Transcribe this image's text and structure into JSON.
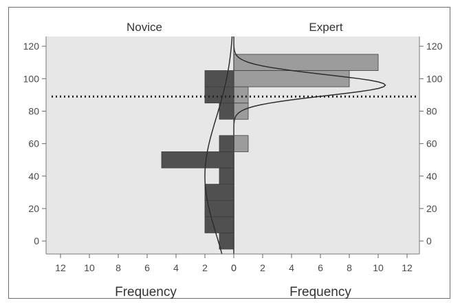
{
  "chart_data": {
    "type": "bar",
    "orientation": "horizontal back-to-back histogram with fitted normal curves",
    "panels": {
      "left_title": "Novice",
      "right_title": "Expert"
    },
    "xlabel_left": "Frequency",
    "xlabel_right": "Frequency",
    "x_ticks_left": [
      12,
      10,
      8,
      6,
      4,
      2,
      0
    ],
    "x_ticks_right": [
      0,
      2,
      4,
      6,
      8,
      10,
      12
    ],
    "xlim": [
      0,
      12
    ],
    "y_ticks": [
      0,
      20,
      40,
      60,
      80,
      100,
      120
    ],
    "ylim": [
      -8,
      126
    ],
    "bin_width": 10,
    "reference_line_y": 89,
    "series": [
      {
        "name": "Novice",
        "side": "left",
        "color": "#505050",
        "bins": [
          {
            "y0": -5,
            "y1": 5,
            "frequency": 1
          },
          {
            "y0": 5,
            "y1": 15,
            "frequency": 2
          },
          {
            "y0": 15,
            "y1": 25,
            "frequency": 2
          },
          {
            "y0": 25,
            "y1": 35,
            "frequency": 2
          },
          {
            "y0": 35,
            "y1": 45,
            "frequency": 1
          },
          {
            "y0": 45,
            "y1": 55,
            "frequency": 5
          },
          {
            "y0": 55,
            "y1": 65,
            "frequency": 1
          },
          {
            "y0": 75,
            "y1": 85,
            "frequency": 1
          },
          {
            "y0": 85,
            "y1": 95,
            "frequency": 2
          },
          {
            "y0": 95,
            "y1": 105,
            "frequency": 2
          }
        ],
        "normal_fit": {
          "mean": 40,
          "sd": 36,
          "peak_frequency": 2
        }
      },
      {
        "name": "Expert",
        "side": "right",
        "color": "#9c9c9c",
        "bins": [
          {
            "y0": 75,
            "y1": 85,
            "frequency": 1
          },
          {
            "y0": 85,
            "y1": 95,
            "frequency": 1
          },
          {
            "y0": 95,
            "y1": 105,
            "frequency": 8
          },
          {
            "y0": 105,
            "y1": 115,
            "frequency": 10
          }
        ],
        "extra_bins": [
          {
            "y0": 55,
            "y1": 65,
            "frequency": 1
          }
        ],
        "normal_fit": {
          "mean": 96,
          "sd": 6.5,
          "peak_frequency": 10.5
        }
      }
    ],
    "colors": {
      "plot_background": "#e7e7e7",
      "novice_bar": "#505050",
      "expert_bar": "#9c9c9c",
      "grid": "none",
      "reference_line": "#222222"
    }
  }
}
